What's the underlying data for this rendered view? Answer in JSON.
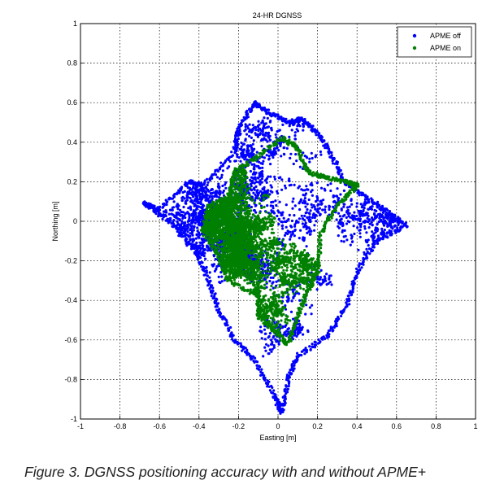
{
  "caption": "Figure 3.  DGNSS positioning accuracy with and without APME+",
  "chart_data": {
    "type": "scatter",
    "title": "24-HR DGNSS",
    "xlabel": "Easting [m]",
    "ylabel": "Northing [m]",
    "xlim": [
      -1,
      1
    ],
    "ylim": [
      -1,
      1
    ],
    "xticks": [
      "-1",
      "-0.8",
      "-0.6",
      "-0.4",
      "-0.2",
      "0",
      "0.2",
      "0.4",
      "0.6",
      "0.8",
      "1"
    ],
    "yticks": [
      "-1",
      "-0.8",
      "-0.6",
      "-0.4",
      "-0.2",
      "0",
      "0.2",
      "0.4",
      "0.6",
      "0.8",
      "1"
    ],
    "grid": "dotted",
    "legend_position": "top-right",
    "series": [
      {
        "name": "APME off",
        "color": "#0000ff",
        "cloud_extent_x": [
          -0.68,
          0.65
        ],
        "cloud_extent_y": [
          -0.97,
          0.6
        ],
        "outline": [
          [
            -0.68,
            0.09
          ],
          [
            -0.6,
            0.06
          ],
          [
            -0.45,
            0.2
          ],
          [
            -0.38,
            0.18
          ],
          [
            -0.22,
            0.35
          ],
          [
            -0.2,
            0.47
          ],
          [
            -0.12,
            0.6
          ],
          [
            -0.05,
            0.55
          ],
          [
            0.05,
            0.5
          ],
          [
            0.12,
            0.52
          ],
          [
            0.2,
            0.45
          ],
          [
            0.28,
            0.32
          ],
          [
            0.33,
            0.2
          ],
          [
            0.45,
            0.12
          ],
          [
            0.55,
            0.05
          ],
          [
            0.65,
            -0.02
          ],
          [
            0.5,
            -0.1
          ],
          [
            0.4,
            -0.25
          ],
          [
            0.35,
            -0.42
          ],
          [
            0.25,
            -0.58
          ],
          [
            0.1,
            -0.68
          ],
          [
            0.05,
            -0.8
          ],
          [
            0.02,
            -0.97
          ],
          [
            -0.02,
            -0.88
          ],
          [
            -0.12,
            -0.7
          ],
          [
            -0.22,
            -0.6
          ],
          [
            -0.3,
            -0.45
          ],
          [
            -0.35,
            -0.3
          ],
          [
            -0.42,
            -0.15
          ],
          [
            -0.55,
            0.0
          ]
        ]
      },
      {
        "name": "APME on",
        "color": "#008000",
        "cloud_extent_x": [
          -0.38,
          0.4
        ],
        "cloud_extent_y": [
          -0.62,
          0.42
        ],
        "outline": [
          [
            -0.38,
            -0.05
          ],
          [
            -0.35,
            0.08
          ],
          [
            -0.25,
            0.12
          ],
          [
            -0.22,
            0.25
          ],
          [
            -0.1,
            0.33
          ],
          [
            0.02,
            0.42
          ],
          [
            0.1,
            0.37
          ],
          [
            0.15,
            0.25
          ],
          [
            0.25,
            0.22
          ],
          [
            0.35,
            0.2
          ],
          [
            0.4,
            0.18
          ],
          [
            0.3,
            0.08
          ],
          [
            0.22,
            -0.05
          ],
          [
            0.2,
            -0.25
          ],
          [
            0.15,
            -0.35
          ],
          [
            0.1,
            -0.48
          ],
          [
            0.05,
            -0.62
          ],
          [
            -0.02,
            -0.55
          ],
          [
            -0.1,
            -0.48
          ],
          [
            -0.1,
            -0.38
          ],
          [
            -0.25,
            -0.3
          ],
          [
            -0.3,
            -0.18
          ]
        ]
      }
    ]
  }
}
